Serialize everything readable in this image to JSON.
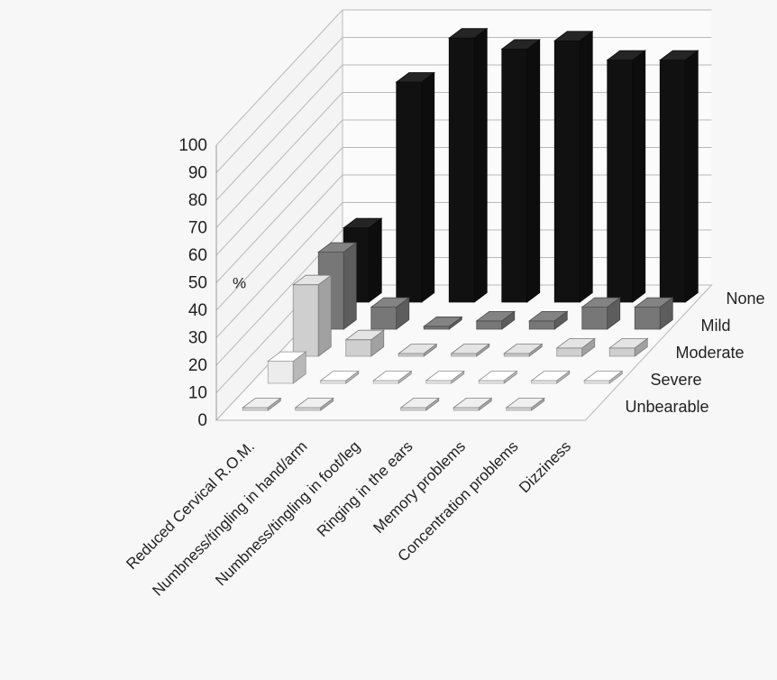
{
  "chart_data": {
    "type": "bar",
    "subtype": "3d-column",
    "ylabel": "%",
    "ylim": [
      0,
      100
    ],
    "ytick_step": 10,
    "grid": true,
    "categories": [
      "Reduced Cervical R.O.M.",
      "Numbness/tingling in hand/arm",
      "Numbness/tingling in foot/leg",
      "Ringing in the ears",
      "Memory problems",
      "Concentration problems",
      "Dizziness"
    ],
    "series": [
      {
        "name": "Unbearable",
        "color": "#d9d9d9",
        "values": [
          0,
          0,
          null,
          0,
          0,
          0,
          null
        ]
      },
      {
        "name": "Severe",
        "color": "#ececec",
        "values": [
          8,
          0,
          0,
          0,
          0,
          0,
          0
        ]
      },
      {
        "name": "Moderate",
        "color": "#cfcfcf",
        "values": [
          26,
          6,
          0,
          0,
          0,
          3,
          3
        ]
      },
      {
        "name": "Mild",
        "color": "#777777",
        "values": [
          28,
          8,
          1,
          3,
          3,
          8,
          8
        ]
      },
      {
        "name": "None",
        "color": "#111111",
        "values": [
          27,
          80,
          96,
          92,
          95,
          88,
          88
        ]
      }
    ]
  }
}
